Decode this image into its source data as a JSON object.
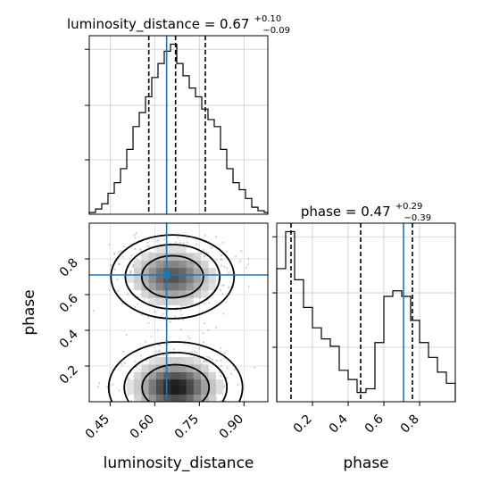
{
  "chart_data": [
    {
      "type": "histogram",
      "parameter": "luminosity_distance",
      "title": {
        "text": "luminosity_distance = 0.67",
        "sup": "+0.10",
        "sub": "−0.09"
      },
      "xlim": [
        0.38,
        0.98
      ],
      "bin_edges": [
        0.38,
        0.401,
        0.422,
        0.443,
        0.464,
        0.485,
        0.506,
        0.527,
        0.548,
        0.569,
        0.59,
        0.611,
        0.632,
        0.653,
        0.674,
        0.695,
        0.716,
        0.737,
        0.758,
        0.779,
        0.8,
        0.821,
        0.842,
        0.863,
        0.884,
        0.905,
        0.926,
        0.947,
        0.968,
        0.98
      ],
      "counts": [
        0.01,
        0.03,
        0.06,
        0.12,
        0.18,
        0.26,
        0.37,
        0.5,
        0.58,
        0.67,
        0.78,
        0.86,
        0.93,
        0.97,
        0.86,
        0.79,
        0.72,
        0.67,
        0.6,
        0.54,
        0.5,
        0.37,
        0.26,
        0.18,
        0.14,
        0.09,
        0.04,
        0.02,
        0.01
      ],
      "quantiles": [
        0.58,
        0.67,
        0.77
      ],
      "truth": 0.64,
      "quantile_color": "#000000",
      "truth_color": "#1f77b4"
    },
    {
      "type": "histogram",
      "parameter": "phase",
      "title": {
        "text": "phase = 0.47",
        "sup": "+0.29",
        "sub": "−0.39"
      },
      "xlim": [
        0.0,
        1.0
      ],
      "bin_edges": [
        0.0,
        0.05,
        0.1,
        0.15,
        0.2,
        0.25,
        0.3,
        0.35,
        0.4,
        0.45,
        0.5,
        0.55,
        0.6,
        0.65,
        0.7,
        0.75,
        0.8,
        0.85,
        0.9,
        0.95,
        1.0
      ],
      "counts": [
        0.72,
        0.92,
        0.66,
        0.51,
        0.4,
        0.34,
        0.3,
        0.17,
        0.12,
        0.05,
        0.07,
        0.32,
        0.57,
        0.6,
        0.57,
        0.44,
        0.32,
        0.24,
        0.16,
        0.1
      ],
      "quantiles": [
        0.08,
        0.47,
        0.76
      ],
      "truth": 0.71,
      "quantile_color": "#000000",
      "truth_color": "#1f77b4"
    },
    {
      "type": "heatmap",
      "x_parameter": "luminosity_distance",
      "y_parameter": "phase",
      "xlabel": "luminosity_distance",
      "ylabel": "phase",
      "xlim": [
        0.38,
        0.98
      ],
      "ylim": [
        0.0,
        1.0
      ],
      "xticks": [
        0.45,
        0.6,
        0.75,
        0.9
      ],
      "xtick_labels": [
        "0.45",
        "0.60",
        "0.75",
        "0.90"
      ],
      "yticks": [
        0.2,
        0.4,
        0.6,
        0.8
      ],
      "ytick_labels": [
        "0.2",
        "0.4",
        "0.6",
        "0.8"
      ],
      "truth": {
        "x": 0.64,
        "y": 0.71
      },
      "density_modes": [
        {
          "x": 0.67,
          "y": 0.08,
          "weight": 1.0
        },
        {
          "x": 0.66,
          "y": 0.7,
          "weight": 0.75
        }
      ],
      "contour_color": "#000000",
      "truth_color": "#1f77b4",
      "scatter_color": "#9a9a9a"
    },
    {
      "type": "axis",
      "parameter": "phase",
      "xlabel": "phase",
      "xlim": [
        0.0,
        1.0
      ],
      "xticks": [
        0.2,
        0.4,
        0.6,
        0.8
      ],
      "xtick_labels": [
        "0.2",
        "0.4",
        "0.6",
        "0.8"
      ]
    }
  ]
}
